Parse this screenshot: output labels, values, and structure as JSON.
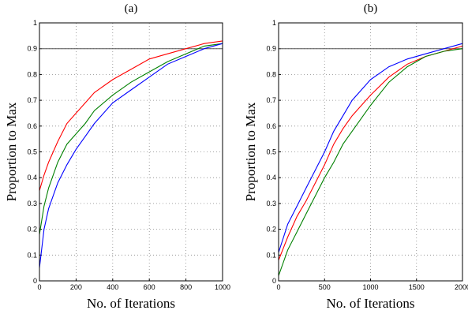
{
  "chart_data": [
    {
      "type": "line",
      "title": "(a)",
      "xlabel": "No. of Iterations",
      "ylabel": "Proportion to Max",
      "xlim": [
        0,
        1000
      ],
      "ylim": [
        0,
        1
      ],
      "xticks": [
        "0",
        "200",
        "400",
        "600",
        "800",
        "1000"
      ],
      "yticks": [
        "0",
        "0.1",
        "0.2",
        "0.3",
        "0.4",
        "0.5",
        "0.6",
        "0.7",
        "0.8",
        "0.9",
        "1"
      ],
      "grid": true,
      "reference_line": 0.9,
      "series": [
        {
          "color": "#ff0000",
          "x": [
            0,
            25,
            50,
            100,
            150,
            200,
            250,
            300,
            400,
            500,
            600,
            700,
            800,
            900,
            1000
          ],
          "y": [
            0.35,
            0.41,
            0.46,
            0.54,
            0.61,
            0.65,
            0.69,
            0.73,
            0.78,
            0.82,
            0.86,
            0.88,
            0.9,
            0.92,
            0.93
          ]
        },
        {
          "color": "#008000",
          "x": [
            0,
            25,
            50,
            100,
            150,
            200,
            250,
            300,
            400,
            500,
            600,
            700,
            800,
            900,
            1000
          ],
          "y": [
            0.18,
            0.29,
            0.36,
            0.46,
            0.53,
            0.57,
            0.61,
            0.66,
            0.72,
            0.77,
            0.81,
            0.85,
            0.88,
            0.91,
            0.92
          ]
        },
        {
          "color": "#0000ff",
          "x": [
            0,
            25,
            50,
            100,
            150,
            200,
            250,
            300,
            400,
            500,
            600,
            700,
            800,
            900,
            1000
          ],
          "y": [
            0.05,
            0.2,
            0.28,
            0.38,
            0.45,
            0.51,
            0.56,
            0.61,
            0.69,
            0.74,
            0.79,
            0.84,
            0.87,
            0.9,
            0.92
          ]
        }
      ]
    },
    {
      "type": "line",
      "title": "(b)",
      "xlabel": "No. of Iterations",
      "ylabel": "Proportion to Max",
      "xlim": [
        0,
        2000
      ],
      "ylim": [
        0,
        1
      ],
      "xticks": [
        "0",
        "500",
        "1000",
        "1500",
        "2000"
      ],
      "yticks": [
        "0",
        "0.1",
        "0.2",
        "0.3",
        "0.4",
        "0.5",
        "0.6",
        "0.7",
        "0.8",
        "0.9",
        "1"
      ],
      "grid": true,
      "reference_line": 0.9,
      "series": [
        {
          "color": "#ff0000",
          "x": [
            0,
            100,
            200,
            300,
            400,
            500,
            600,
            700,
            800,
            1000,
            1200,
            1400,
            1600,
            1800,
            2000
          ],
          "y": [
            0.08,
            0.17,
            0.25,
            0.31,
            0.38,
            0.45,
            0.53,
            0.59,
            0.64,
            0.72,
            0.79,
            0.84,
            0.87,
            0.89,
            0.91
          ]
        },
        {
          "color": "#008000",
          "x": [
            0,
            100,
            200,
            300,
            400,
            500,
            600,
            700,
            800,
            1000,
            1200,
            1400,
            1600,
            1800,
            2000
          ],
          "y": [
            0.02,
            0.12,
            0.19,
            0.26,
            0.33,
            0.4,
            0.46,
            0.53,
            0.58,
            0.68,
            0.77,
            0.83,
            0.87,
            0.89,
            0.9
          ]
        },
        {
          "color": "#0000ff",
          "x": [
            0,
            100,
            200,
            300,
            400,
            500,
            600,
            700,
            800,
            1000,
            1200,
            1400,
            1600,
            1800,
            2000
          ],
          "y": [
            0.11,
            0.22,
            0.29,
            0.36,
            0.43,
            0.5,
            0.58,
            0.64,
            0.7,
            0.78,
            0.83,
            0.86,
            0.88,
            0.9,
            0.92
          ]
        }
      ]
    }
  ]
}
